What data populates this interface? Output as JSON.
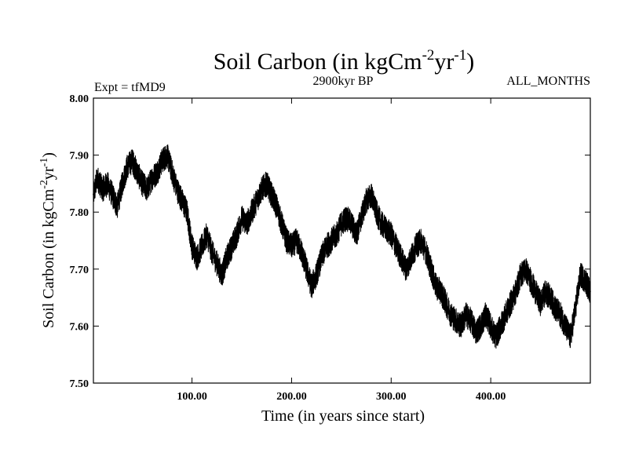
{
  "chart_data": {
    "type": "line",
    "title": {
      "main": "Soil Carbon (in kgCm",
      "sup1": "-2",
      "mid": "yr",
      "sup2": "-1",
      "end": ")"
    },
    "subtitle_left": "Expt = tfMD9",
    "subtitle_center": "2900kyr BP",
    "subtitle_right": "ALL_MONTHS",
    "xlabel": "Time (in years since start)",
    "ylabel": {
      "main": "Soil Carbon (in kgCm",
      "sup1": "-2",
      "mid": "yr",
      "sup2": "-1",
      "end": ")"
    },
    "xlim": [
      1,
      500
    ],
    "ylim": [
      7.5,
      8.0
    ],
    "xticks": [
      100,
      200,
      300,
      400
    ],
    "xtick_labels": [
      "100.00",
      "200.00",
      "300.00",
      "400.00"
    ],
    "yticks": [
      7.5,
      7.6,
      7.7,
      7.8,
      7.9,
      8.0
    ],
    "ytick_labels": [
      "7.50",
      "7.60",
      "7.70",
      "7.80",
      "7.90",
      "8.00"
    ],
    "line_color": "#000000",
    "series": [
      {
        "name": "Soil Carbon",
        "x": [
          1,
          5,
          10,
          15,
          20,
          25,
          30,
          35,
          40,
          45,
          50,
          55,
          60,
          65,
          70,
          75,
          80,
          85,
          90,
          95,
          100,
          105,
          110,
          115,
          120,
          125,
          130,
          135,
          140,
          145,
          150,
          155,
          160,
          165,
          170,
          175,
          180,
          185,
          190,
          195,
          200,
          205,
          210,
          215,
          220,
          225,
          230,
          235,
          240,
          245,
          250,
          255,
          260,
          265,
          270,
          275,
          280,
          285,
          290,
          295,
          300,
          305,
          310,
          315,
          320,
          325,
          330,
          335,
          340,
          345,
          350,
          355,
          360,
          365,
          370,
          375,
          380,
          385,
          390,
          395,
          400,
          405,
          410,
          415,
          420,
          425,
          430,
          435,
          440,
          445,
          450,
          455,
          460,
          465,
          470,
          475,
          480,
          485,
          490,
          495,
          500
        ],
        "values": [
          7.83,
          7.86,
          7.84,
          7.85,
          7.83,
          7.81,
          7.85,
          7.88,
          7.89,
          7.87,
          7.85,
          7.84,
          7.86,
          7.87,
          7.89,
          7.9,
          7.87,
          7.84,
          7.82,
          7.8,
          7.74,
          7.72,
          7.74,
          7.76,
          7.73,
          7.71,
          7.69,
          7.72,
          7.74,
          7.76,
          7.79,
          7.78,
          7.8,
          7.82,
          7.84,
          7.85,
          7.83,
          7.81,
          7.78,
          7.75,
          7.74,
          7.75,
          7.73,
          7.7,
          7.67,
          7.69,
          7.72,
          7.74,
          7.75,
          7.76,
          7.78,
          7.79,
          7.78,
          7.76,
          7.79,
          7.82,
          7.83,
          7.8,
          7.78,
          7.77,
          7.76,
          7.74,
          7.72,
          7.7,
          7.72,
          7.74,
          7.75,
          7.73,
          7.7,
          7.67,
          7.66,
          7.64,
          7.62,
          7.61,
          7.6,
          7.62,
          7.61,
          7.59,
          7.6,
          7.62,
          7.6,
          7.58,
          7.6,
          7.62,
          7.64,
          7.66,
          7.69,
          7.7,
          7.68,
          7.66,
          7.64,
          7.66,
          7.65,
          7.63,
          7.62,
          7.6,
          7.58,
          7.63,
          7.69,
          7.68,
          7.66
        ]
      }
    ]
  }
}
